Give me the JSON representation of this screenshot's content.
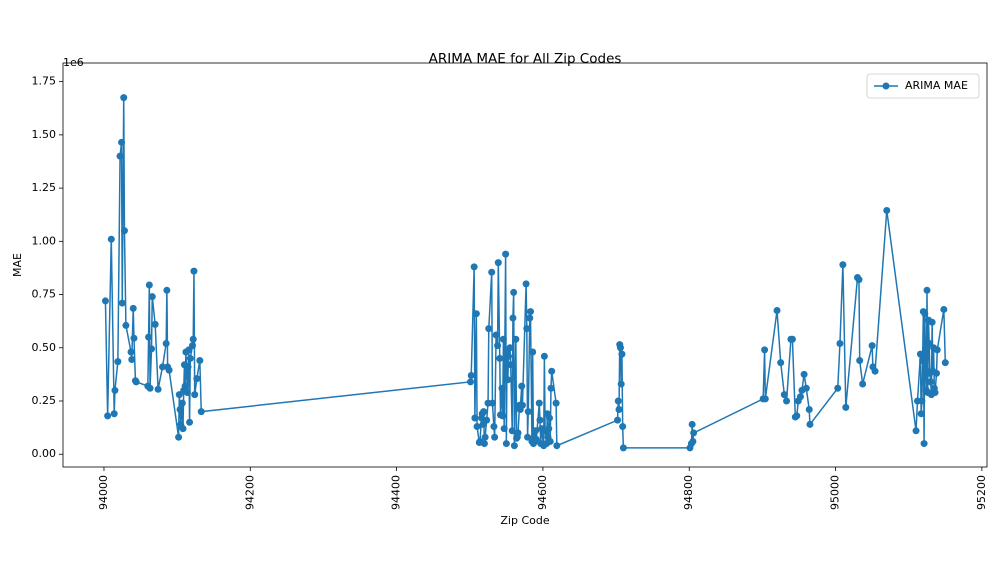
{
  "chart_data": {
    "type": "line",
    "title": "ARIMA MAE for All Zip Codes",
    "xlabel": "Zip Code",
    "ylabel": "MAE",
    "y_offset_label": "1e6",
    "x": [
      94002,
      94005,
      94010,
      94014,
      94015,
      94019,
      94022,
      94024,
      94025,
      94027,
      94028,
      94030,
      94037,
      94038,
      94040,
      94041,
      94043,
      94044,
      94060,
      94061,
      94062,
      94063,
      94065,
      94066,
      94070,
      94074,
      94080,
      94085,
      94086,
      94087,
      94089,
      94102,
      94103,
      94104,
      94105,
      94107,
      94108,
      94109,
      94110,
      94111,
      94112,
      94114,
      94115,
      94116,
      94117,
      94118,
      94121,
      94122,
      94123,
      94124,
      94127,
      94131,
      94133,
      94501,
      94502,
      94506,
      94507,
      94509,
      94510,
      94513,
      94514,
      94516,
      94517,
      94518,
      94519,
      94520,
      94521,
      94523,
      94525,
      94526,
      94530,
      94531,
      94533,
      94534,
      94536,
      94538,
      94539,
      94541,
      94542,
      94544,
      94545,
      94546,
      94547,
      94549,
      94550,
      94551,
      94552,
      94553,
      94555,
      94556,
      94558,
      94559,
      94560,
      94561,
      94563,
      94564,
      94565,
      94566,
      94568,
      94569,
      94571,
      94572,
      94577,
      94578,
      94579,
      94580,
      94582,
      94583,
      94585,
      94586,
      94587,
      94588,
      94589,
      94590,
      94591,
      94595,
      94596,
      94597,
      94598,
      94601,
      94602,
      94603,
      94605,
      94606,
      94607,
      94608,
      94609,
      94610,
      94611,
      94612,
      94618,
      94619,
      94702,
      94703,
      94704,
      94705,
      94706,
      94707,
      94708,
      94709,
      94710,
      94801,
      94803,
      94804,
      94805,
      94806,
      94901,
      94903,
      94904,
      94920,
      94925,
      94930,
      94933,
      94939,
      94941,
      94945,
      94947,
      94949,
      94952,
      94954,
      94957,
      94960,
      94964,
      94965,
      95003,
      95006,
      95010,
      95014,
      95030,
      95032,
      95033,
      95037,
      95050,
      95051,
      95054,
      95070,
      95110,
      95112,
      95116,
      95117,
      95118,
      95119,
      95120,
      95121,
      95122,
      95123,
      95124,
      95125,
      95126,
      95127,
      95128,
      95129,
      95130,
      95131,
      95132,
      95133,
      95134,
      95135,
      95136,
      95138,
      95139,
      95148,
      95150
    ],
    "series": [
      {
        "name": "ARIMA MAE",
        "color": "#1f77b4",
        "values": [
          720000,
          180000,
          1010000,
          190000,
          300000,
          435000,
          1400000,
          1465000,
          710000,
          1675000,
          1050000,
          605000,
          480000,
          445000,
          685000,
          545000,
          345000,
          340000,
          320000,
          550000,
          795000,
          310000,
          495000,
          740000,
          610000,
          305000,
          410000,
          520000,
          770000,
          410000,
          395000,
          80000,
          280000,
          210000,
          140000,
          240000,
          120000,
          300000,
          420000,
          320000,
          480000,
          290000,
          410000,
          490000,
          150000,
          450000,
          510000,
          540000,
          860000,
          280000,
          355000,
          440000,
          200000,
          340000,
          370000,
          880000,
          170000,
          660000,
          130000,
          55000,
          60000,
          170000,
          190000,
          140000,
          200000,
          50000,
          80000,
          160000,
          240000,
          590000,
          855000,
          240000,
          130000,
          80000,
          560000,
          510000,
          900000,
          450000,
          185000,
          310000,
          180000,
          540000,
          120000,
          940000,
          50000,
          480000,
          350000,
          460000,
          500000,
          420000,
          110000,
          640000,
          760000,
          40000,
          540000,
          75000,
          80000,
          100000,
          230000,
          210000,
          320000,
          230000,
          800000,
          590000,
          80000,
          200000,
          640000,
          670000,
          60000,
          480000,
          50000,
          80000,
          60000,
          110000,
          70000,
          240000,
          160000,
          50000,
          120000,
          40000,
          460000,
          110000,
          50000,
          190000,
          80000,
          120000,
          170000,
          60000,
          310000,
          390000,
          240000,
          40000,
          160000,
          250000,
          210000,
          515000,
          500000,
          330000,
          470000,
          130000,
          30000,
          30000,
          50000,
          140000,
          60000,
          100000,
          260000,
          490000,
          260000,
          675000,
          430000,
          280000,
          250000,
          540000,
          540000,
          175000,
          180000,
          250000,
          270000,
          300000,
          375000,
          310000,
          210000,
          140000,
          310000,
          520000,
          890000,
          220000,
          830000,
          820000,
          440000,
          330000,
          510000,
          410000,
          390000,
          1145000,
          110000,
          250000,
          470000,
          190000,
          250000,
          440000,
          670000,
          50000,
          660000,
          400000,
          300000,
          770000,
          290000,
          630000,
          520000,
          380000,
          340000,
          280000,
          620000,
          390000,
          500000,
          310000,
          290000,
          380000,
          490000,
          680000,
          430000
        ]
      }
    ],
    "xlim": [
      93944,
      95207
    ],
    "ylim": [
      -60000,
      1800000
    ],
    "xticks": [
      94000,
      94200,
      94400,
      94600,
      94800,
      95000,
      95200
    ],
    "yticks": [
      {
        "value": 0,
        "label": "0.00"
      },
      {
        "value": 250000,
        "label": "0.25"
      },
      {
        "value": 500000,
        "label": "0.50"
      },
      {
        "value": 750000,
        "label": "0.75"
      },
      {
        "value": 1000000,
        "label": "1.00"
      },
      {
        "value": 1250000,
        "label": "1.25"
      },
      {
        "value": 1500000,
        "label": "1.50"
      },
      {
        "value": 1750000,
        "label": "1.75"
      }
    ],
    "grid": false,
    "legend": "upper right",
    "marker": "o"
  }
}
